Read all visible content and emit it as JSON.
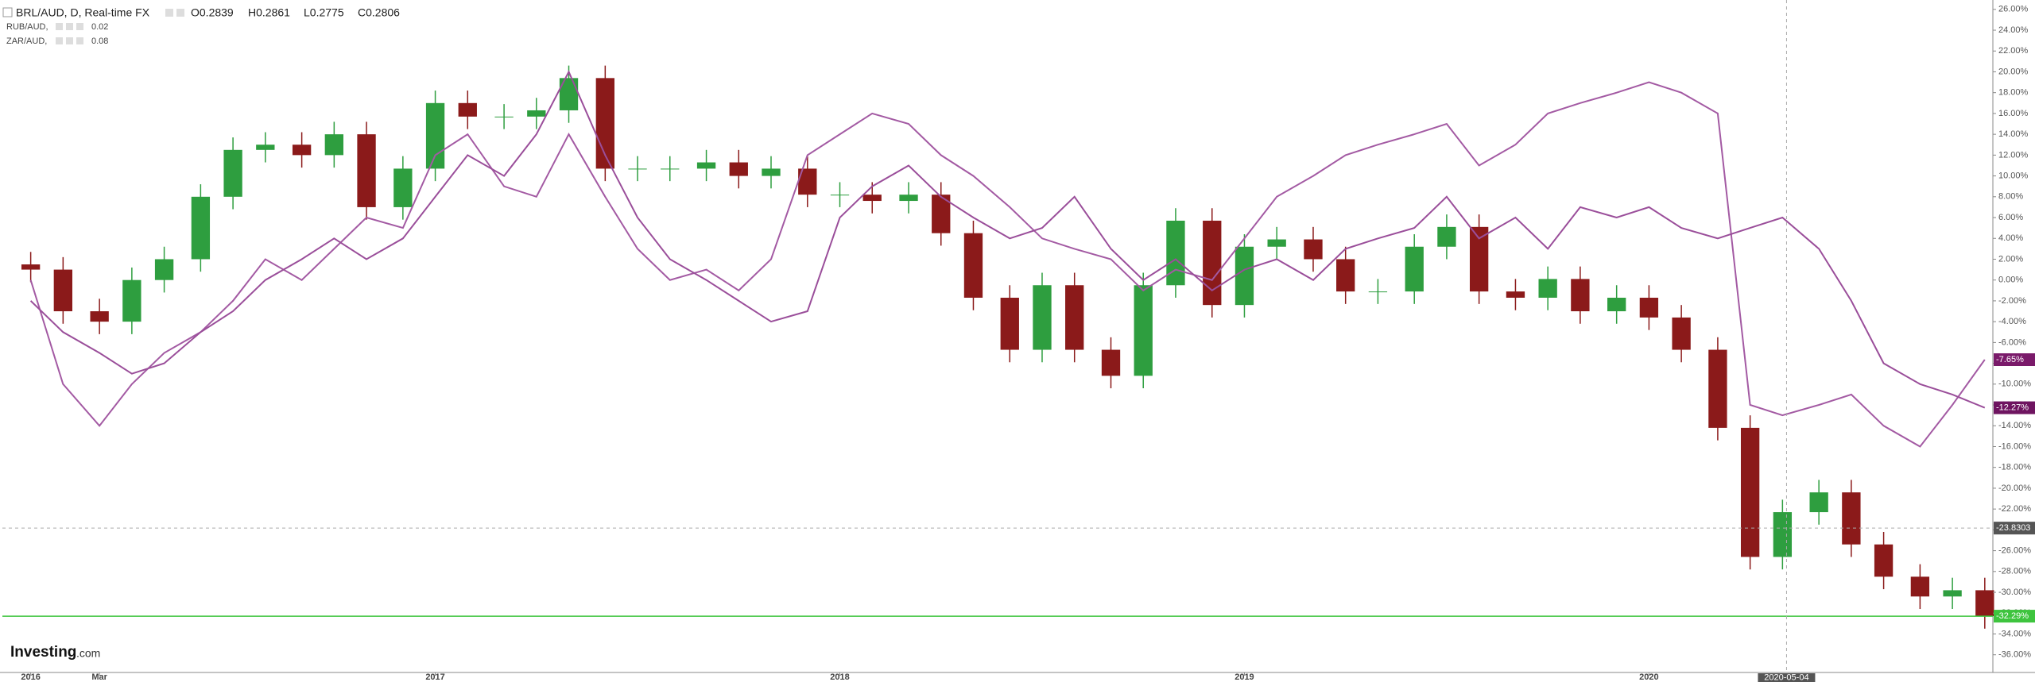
{
  "chart_data": {
    "type": "candlestick",
    "x": [
      2016,
      2016.08,
      2016.17,
      2016.25,
      2016.33,
      2016.42,
      2016.5,
      2016.58,
      2016.67,
      2016.75,
      2016.83,
      2016.92,
      2017,
      2017.08,
      2017.17,
      2017.25,
      2017.33,
      2017.42,
      2017.5,
      2017.58,
      2017.67,
      2017.75,
      2017.83,
      2017.92,
      2018,
      2018.08,
      2018.17,
      2018.25,
      2018.33,
      2018.42,
      2018.5,
      2018.58,
      2018.67,
      2018.75,
      2018.83,
      2018.92,
      2019,
      2019.08,
      2019.17,
      2019.25,
      2019.33,
      2019.42,
      2019.5,
      2019.58,
      2019.67,
      2019.75,
      2019.83,
      2019.92,
      2020,
      2020.08,
      2020.17,
      2020.25,
      2020.33,
      2020.42,
      2020.5,
      2020.58,
      2020.67,
      2020.75,
      2020.83
    ],
    "series": [
      {
        "name": "BRL/AUD, D, Real-time FX",
        "type": "candlestick",
        "up_color": "#2e9e3f",
        "down_color": "#8b1a1a",
        "ohlc_labels": [
          "O0.2839",
          "H0.2861",
          "L0.2775",
          "C0.2806"
        ],
        "open": [
          1.5,
          1,
          -3,
          -4,
          0,
          2,
          8,
          12.5,
          13,
          12,
          14,
          7,
          10.7,
          17,
          15.7,
          15.7,
          16.3,
          19.4,
          10.7,
          10.7,
          10.7,
          11.3,
          10,
          10.7,
          8.2,
          8.2,
          7.6,
          8.2,
          4.5,
          -1.7,
          -6.7,
          -0.5,
          -6.7,
          -9.2,
          -0.5,
          5.7,
          -2.4,
          3.2,
          3.9,
          2,
          -1.1,
          -1.1,
          3.2,
          5.1,
          -1.1,
          -1.7,
          0.1,
          -3,
          -1.7,
          -3.6,
          -6.7,
          -14.2,
          -26.6,
          -22.3,
          -20.4,
          -25.4,
          -28.5,
          -30.4,
          -29.8
        ],
        "high": [
          2.7,
          2.2,
          -1.8,
          1.2,
          3.2,
          9.2,
          13.7,
          14.2,
          14.2,
          15.2,
          15.2,
          11.9,
          18.2,
          18.2,
          16.9,
          17.5,
          20.6,
          20.6,
          11.9,
          11.9,
          12.5,
          12.5,
          11.9,
          11.9,
          9.4,
          9.4,
          9.4,
          9.4,
          5.7,
          -0.5,
          0.7,
          0.7,
          -5.5,
          0.7,
          6.9,
          6.9,
          4.4,
          5.1,
          5.1,
          3.2,
          0.1,
          4.4,
          6.3,
          6.3,
          0.1,
          1.3,
          1.3,
          -0.5,
          -0.5,
          -2.4,
          -5.5,
          -13,
          -21.1,
          -19.2,
          -19.2,
          -24.2,
          -27.3,
          -28.6,
          -28.6
        ],
        "low": [
          -0.2,
          -4.2,
          -5.2,
          -5.2,
          -1.2,
          0.8,
          6.8,
          11.3,
          10.8,
          10.8,
          5.8,
          5.8,
          9.5,
          14.5,
          14.5,
          14.5,
          15.1,
          9.5,
          9.5,
          9.5,
          9.5,
          8.8,
          8.8,
          7,
          7,
          6.4,
          6.4,
          3.3,
          -2.9,
          -7.9,
          -7.9,
          -7.9,
          -10.4,
          -10.4,
          -1.7,
          -3.6,
          -3.6,
          2,
          0.8,
          -2.3,
          -2.3,
          -2.3,
          2,
          -2.3,
          -2.9,
          -2.9,
          -4.2,
          -4.2,
          -4.8,
          -7.9,
          -15.4,
          -27.8,
          -27.8,
          -23.5,
          -26.6,
          -29.7,
          -31.6,
          -31.6,
          -33.49
        ],
        "close": [
          1,
          -3,
          -4,
          0,
          2,
          8,
          12.5,
          13,
          12,
          14,
          7,
          10.7,
          17,
          15.7,
          15.7,
          16.3,
          19.4,
          10.7,
          10.7,
          10.7,
          11.3,
          10,
          10.7,
          8.2,
          8.2,
          7.6,
          8.2,
          4.5,
          -1.7,
          -6.7,
          -0.5,
          -6.7,
          -9.2,
          -0.5,
          5.7,
          -2.4,
          3.2,
          3.9,
          2,
          -1.1,
          -1.1,
          3.2,
          5.1,
          -1.1,
          -1.7,
          0.1,
          -3,
          -1.7,
          -3.6,
          -6.7,
          -14.2,
          -26.6,
          -22.3,
          -20.4,
          -25.4,
          -28.5,
          -30.4,
          -29.8,
          -32.29
        ],
        "value_labels": [
          null,
          null,
          null,
          null,
          null,
          null,
          null,
          null,
          null,
          null,
          null,
          null,
          null,
          null,
          null,
          null,
          null,
          null,
          null,
          null,
          null,
          null,
          null,
          null,
          null,
          null,
          null,
          null,
          null,
          null,
          null,
          null,
          null,
          null,
          null,
          null,
          null,
          null,
          null,
          null,
          null,
          null,
          null,
          null,
          null,
          null,
          null,
          null,
          null,
          null,
          null,
          null,
          null,
          null,
          null,
          null,
          null,
          null,
          "-32.29%"
        ],
        "last_color": "#3ec43e"
      },
      {
        "name": "RUB/AUD, ",
        "type": "line",
        "color": "#a35aa3",
        "label_color": "#7a1a6a",
        "legend_value": "0.02",
        "values": [
          0,
          -10,
          -14,
          -10,
          -7,
          -5,
          -2,
          2,
          0,
          3,
          6,
          5,
          12,
          14,
          9,
          8,
          14,
          8,
          3,
          0,
          1,
          -1,
          2,
          12,
          14,
          16,
          15,
          12,
          10,
          7,
          4,
          3,
          2,
          -1,
          1,
          0,
          4,
          8,
          10,
          12,
          13,
          14,
          15,
          11,
          13,
          16,
          17,
          18,
          19,
          18,
          16,
          -12,
          -13,
          -12,
          -11,
          -14,
          -16,
          -12,
          -7.65
        ],
        "value_labels": [
          null,
          null,
          null,
          null,
          null,
          null,
          null,
          null,
          null,
          null,
          null,
          null,
          null,
          null,
          null,
          null,
          null,
          null,
          null,
          null,
          null,
          null,
          null,
          null,
          null,
          null,
          null,
          null,
          null,
          null,
          null,
          null,
          null,
          null,
          null,
          null,
          null,
          null,
          null,
          null,
          null,
          null,
          null,
          null,
          null,
          null,
          null,
          null,
          null,
          null,
          null,
          null,
          null,
          null,
          null,
          null,
          null,
          null,
          "-7.65%"
        ]
      },
      {
        "name": "ZAR/AUD, ",
        "type": "line",
        "color": "#9a4e9a",
        "label_color": "#6e1460",
        "legend_value": "0.08",
        "values": [
          -2,
          -5,
          -7,
          -9,
          -8,
          -5,
          -3,
          0,
          2,
          4,
          2,
          4,
          8,
          12,
          10,
          14,
          20,
          12,
          6,
          2,
          0,
          -2,
          -4,
          -3,
          6,
          9,
          11,
          8,
          6,
          4,
          5,
          8,
          3,
          0,
          2,
          -1,
          1,
          2,
          0,
          3,
          4,
          5,
          8,
          4,
          6,
          3,
          7,
          6,
          7,
          5,
          4,
          5,
          6,
          3,
          -2,
          -8,
          -10,
          -11,
          -12.27
        ],
        "value_labels": [
          null,
          null,
          null,
          null,
          null,
          null,
          null,
          null,
          null,
          null,
          null,
          null,
          null,
          null,
          null,
          null,
          null,
          null,
          null,
          null,
          null,
          null,
          null,
          null,
          null,
          null,
          null,
          null,
          null,
          null,
          null,
          null,
          null,
          null,
          null,
          null,
          null,
          null,
          null,
          null,
          null,
          null,
          null,
          null,
          null,
          null,
          null,
          null,
          null,
          null,
          null,
          null,
          null,
          null,
          null,
          null,
          null,
          null,
          "-12.27%"
        ]
      }
    ],
    "xlim": [
      2015.93,
      2020.85
    ],
    "xticks": [
      {
        "value": 2016,
        "label": "2016"
      },
      {
        "value": 2016.17,
        "label": "Mar"
      },
      {
        "value": 2017,
        "label": "2017"
      },
      {
        "value": 2018,
        "label": "2018"
      },
      {
        "value": 2019,
        "label": "2019"
      },
      {
        "value": 2020,
        "label": "2020"
      }
    ],
    "ylim": [
      -37.7,
      26.9
    ],
    "yticks": [
      {
        "value": 26,
        "label": "26.00%"
      },
      {
        "value": 24,
        "label": "24.00%"
      },
      {
        "value": 22,
        "label": "22.00%"
      },
      {
        "value": 20,
        "label": "20.00%"
      },
      {
        "value": 18,
        "label": "18.00%"
      },
      {
        "value": 16,
        "label": "16.00%"
      },
      {
        "value": 14,
        "label": "14.00%"
      },
      {
        "value": 12,
        "label": "12.00%"
      },
      {
        "value": 10,
        "label": "10.00%"
      },
      {
        "value": 8,
        "label": "8.00%"
      },
      {
        "value": 6,
        "label": "6.00%"
      },
      {
        "value": 4,
        "label": "4.00%"
      },
      {
        "value": 2,
        "label": "2.00%"
      },
      {
        "value": 0,
        "label": "0.00%"
      },
      {
        "value": -2,
        "label": "-2.00%"
      },
      {
        "value": -4,
        "label": "-4.00%"
      },
      {
        "value": -6,
        "label": "-6.00%"
      },
      {
        "value": -8,
        "label": "-8.00%"
      },
      {
        "value": -10,
        "label": "-10.00%"
      },
      {
        "value": -12,
        "label": "-12.00%"
      },
      {
        "value": -14,
        "label": "-14.00%"
      },
      {
        "value": -16,
        "label": "-16.00%"
      },
      {
        "value": -18,
        "label": "-18.00%"
      },
      {
        "value": -20,
        "label": "-20.00%"
      },
      {
        "value": -22,
        "label": "-22.00%"
      },
      {
        "value": -24,
        "label": "-24.00%"
      },
      {
        "value": -26,
        "label": "-26.00%"
      },
      {
        "value": -28,
        "label": "-28.00%"
      },
      {
        "value": -30,
        "label": "-30.00%"
      },
      {
        "value": -32,
        "label": "-32.00%"
      },
      {
        "value": -34,
        "label": "-34.00%"
      },
      {
        "value": -36,
        "label": "-36.00%"
      }
    ],
    "grid": false,
    "crosshair": {
      "x": 2020.34,
      "x_label": "2020-05-04",
      "y": -23.8303
    },
    "logo_main": "Investing",
    "logo_suffix": ".com"
  }
}
